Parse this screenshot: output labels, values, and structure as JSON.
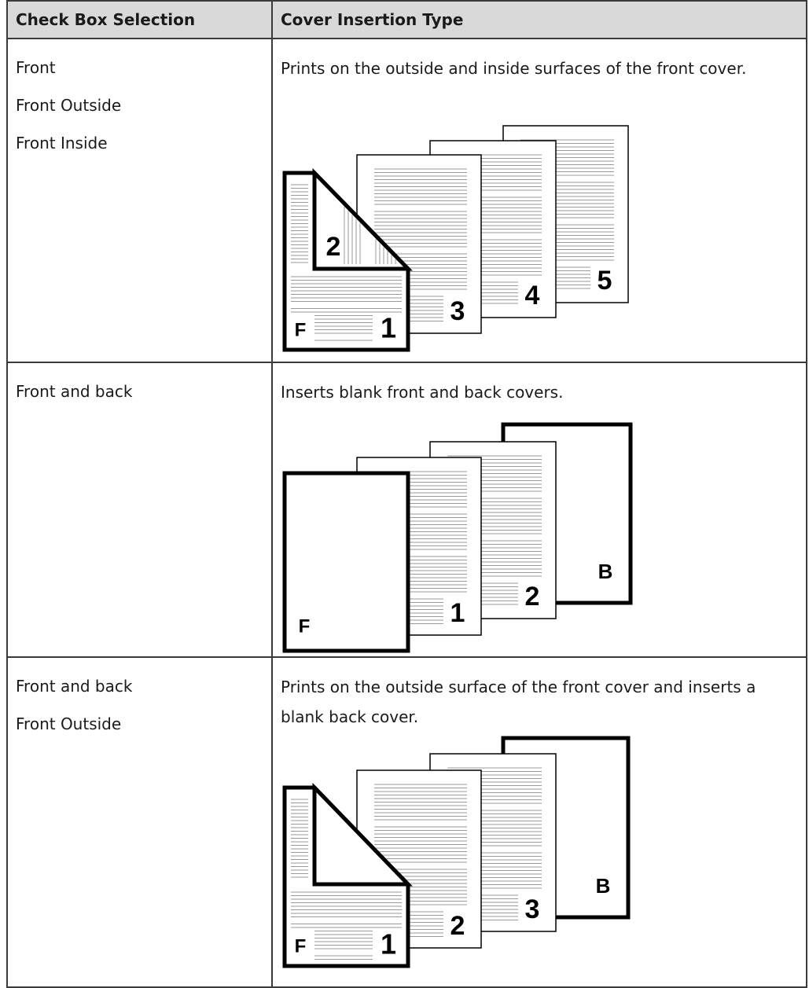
{
  "table": {
    "header": [
      "Check Box Selection",
      "Cover Insertion Type"
    ],
    "rows": [
      {
        "selections": [
          "Front",
          "Front Outside",
          "Front Inside"
        ],
        "description": "Prints on the outside and inside surfaces of the front cover.",
        "figure": {
          "labels": [
            "F",
            "1",
            "2",
            "3",
            "4",
            "5"
          ]
        }
      },
      {
        "selections": [
          "Front and back"
        ],
        "description": "Inserts blank front and back covers.",
        "figure": {
          "labels": [
            "F",
            "1",
            "2",
            "B"
          ]
        }
      },
      {
        "selections": [
          "Front and back",
          "Front Outside"
        ],
        "description": "Prints on the outside surface of the front cover and inserts a blank back cover.",
        "figure": {
          "labels": [
            "F",
            "1",
            "2",
            "3",
            "B"
          ]
        }
      }
    ]
  }
}
